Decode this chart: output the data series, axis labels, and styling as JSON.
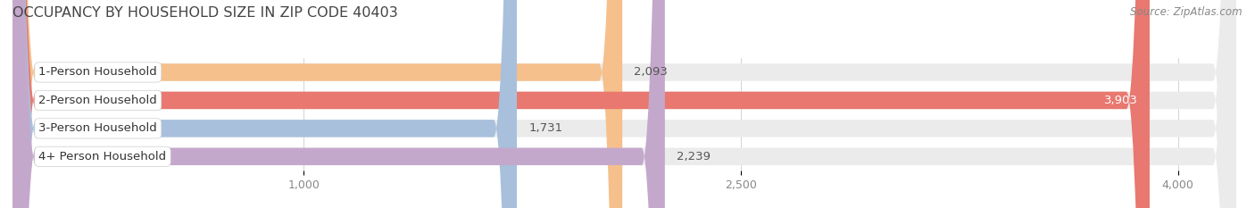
{
  "title": "OCCUPANCY BY HOUSEHOLD SIZE IN ZIP CODE 40403",
  "source": "Source: ZipAtlas.com",
  "categories": [
    "1-Person Household",
    "2-Person Household",
    "3-Person Household",
    "4+ Person Household"
  ],
  "values": [
    2093,
    3903,
    1731,
    2239
  ],
  "bar_colors": [
    "#f5c08c",
    "#e87870",
    "#a8c0dc",
    "#c4a8cc"
  ],
  "background_color": "#ffffff",
  "bar_bg_color": "#ebebeb",
  "data_min": 0,
  "data_max": 4200,
  "xticks": [
    1000,
    2500,
    4000
  ],
  "title_fontsize": 11.5,
  "source_fontsize": 8.5,
  "label_fontsize": 9.5,
  "tick_fontsize": 9,
  "value_fontsize": 9.5
}
